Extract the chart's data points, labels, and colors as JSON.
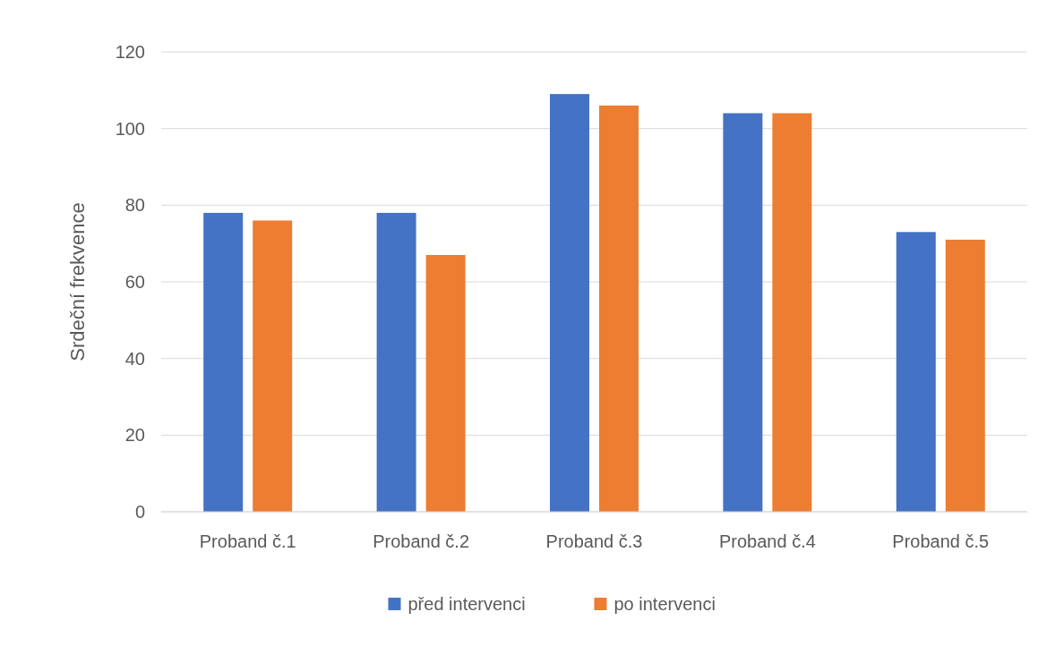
{
  "chart_data": {
    "type": "bar",
    "ylabel": "Srdeční frekvence",
    "categories": [
      "Proband č.1",
      "Proband č.2",
      "Proband č.3",
      "Proband č.4",
      "Proband č.5"
    ],
    "series": [
      {
        "name": "před intervenci",
        "color": "#4472c4",
        "values": [
          78,
          78,
          109,
          104,
          73
        ]
      },
      {
        "name": "po intervenci",
        "color": "#ed7d31",
        "values": [
          76,
          67,
          106,
          104,
          71
        ]
      }
    ],
    "ylim": [
      0,
      120
    ],
    "yticks": [
      0,
      20,
      40,
      60,
      80,
      100,
      120
    ],
    "grid": "y",
    "legend": "bottom"
  }
}
